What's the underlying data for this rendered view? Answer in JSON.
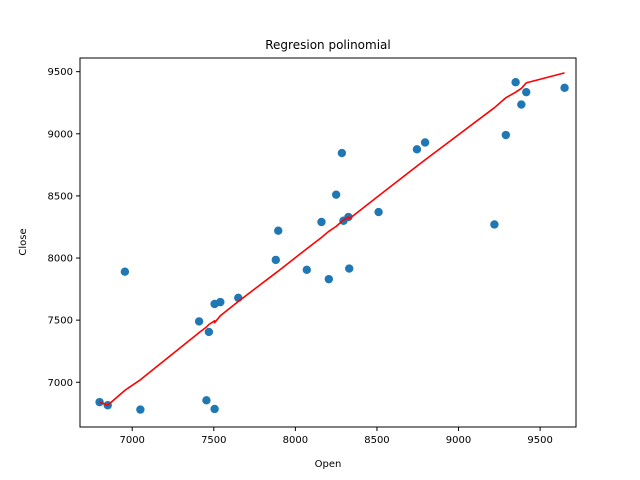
{
  "chart_data": {
    "type": "scatter",
    "title": "Regresion polinomial",
    "xlabel": "Open",
    "ylabel": "Close",
    "xlim": [
      6680,
      9720
    ],
    "ylim": [
      6640,
      9610
    ],
    "xticks": [
      7000,
      7500,
      8000,
      8500,
      9000,
      9500
    ],
    "yticks": [
      7000,
      7500,
      8000,
      8500,
      9000,
      9500
    ],
    "points": [
      {
        "x": 6800,
        "y": 6840
      },
      {
        "x": 6850,
        "y": 6815
      },
      {
        "x": 6955,
        "y": 7890
      },
      {
        "x": 7050,
        "y": 6780
      },
      {
        "x": 7410,
        "y": 7490
      },
      {
        "x": 7455,
        "y": 6855
      },
      {
        "x": 7470,
        "y": 7405
      },
      {
        "x": 7505,
        "y": 7630
      },
      {
        "x": 7505,
        "y": 6785
      },
      {
        "x": 7540,
        "y": 7645
      },
      {
        "x": 7650,
        "y": 7680
      },
      {
        "x": 7880,
        "y": 7985
      },
      {
        "x": 7895,
        "y": 8220
      },
      {
        "x": 8070,
        "y": 7905
      },
      {
        "x": 8160,
        "y": 8290
      },
      {
        "x": 8205,
        "y": 7830
      },
      {
        "x": 8250,
        "y": 8510
      },
      {
        "x": 8285,
        "y": 8845
      },
      {
        "x": 8295,
        "y": 8300
      },
      {
        "x": 8325,
        "y": 8330
      },
      {
        "x": 8330,
        "y": 7915
      },
      {
        "x": 8510,
        "y": 8370
      },
      {
        "x": 8745,
        "y": 8875
      },
      {
        "x": 8795,
        "y": 8930
      },
      {
        "x": 9220,
        "y": 8270
      },
      {
        "x": 9290,
        "y": 8990
      },
      {
        "x": 9350,
        "y": 9415
      },
      {
        "x": 9385,
        "y": 9235
      },
      {
        "x": 9415,
        "y": 9335
      },
      {
        "x": 9650,
        "y": 9370
      }
    ],
    "regression_line": [
      [
        6800,
        6840
      ],
      [
        6850,
        6815
      ],
      [
        6955,
        6935
      ],
      [
        7050,
        7020
      ],
      [
        7410,
        7400
      ],
      [
        7455,
        7445
      ],
      [
        7470,
        7465
      ],
      [
        7505,
        7495
      ],
      [
        7505,
        7480
      ],
      [
        7540,
        7535
      ],
      [
        7650,
        7650
      ],
      [
        7880,
        7880
      ],
      [
        7895,
        7895
      ],
      [
        8070,
        8075
      ],
      [
        8160,
        8165
      ],
      [
        8205,
        8215
      ],
      [
        8250,
        8255
      ],
      [
        8285,
        8295
      ],
      [
        8295,
        8305
      ],
      [
        8325,
        8330
      ],
      [
        8330,
        8315
      ],
      [
        8510,
        8500
      ],
      [
        8745,
        8740
      ],
      [
        8795,
        8790
      ],
      [
        9220,
        9210
      ],
      [
        9290,
        9290
      ],
      [
        9350,
        9335
      ],
      [
        9385,
        9365
      ],
      [
        9415,
        9410
      ],
      [
        9650,
        9490
      ]
    ],
    "point_color": "#1f77b4",
    "line_color": "#ff0000",
    "grid": false
  }
}
